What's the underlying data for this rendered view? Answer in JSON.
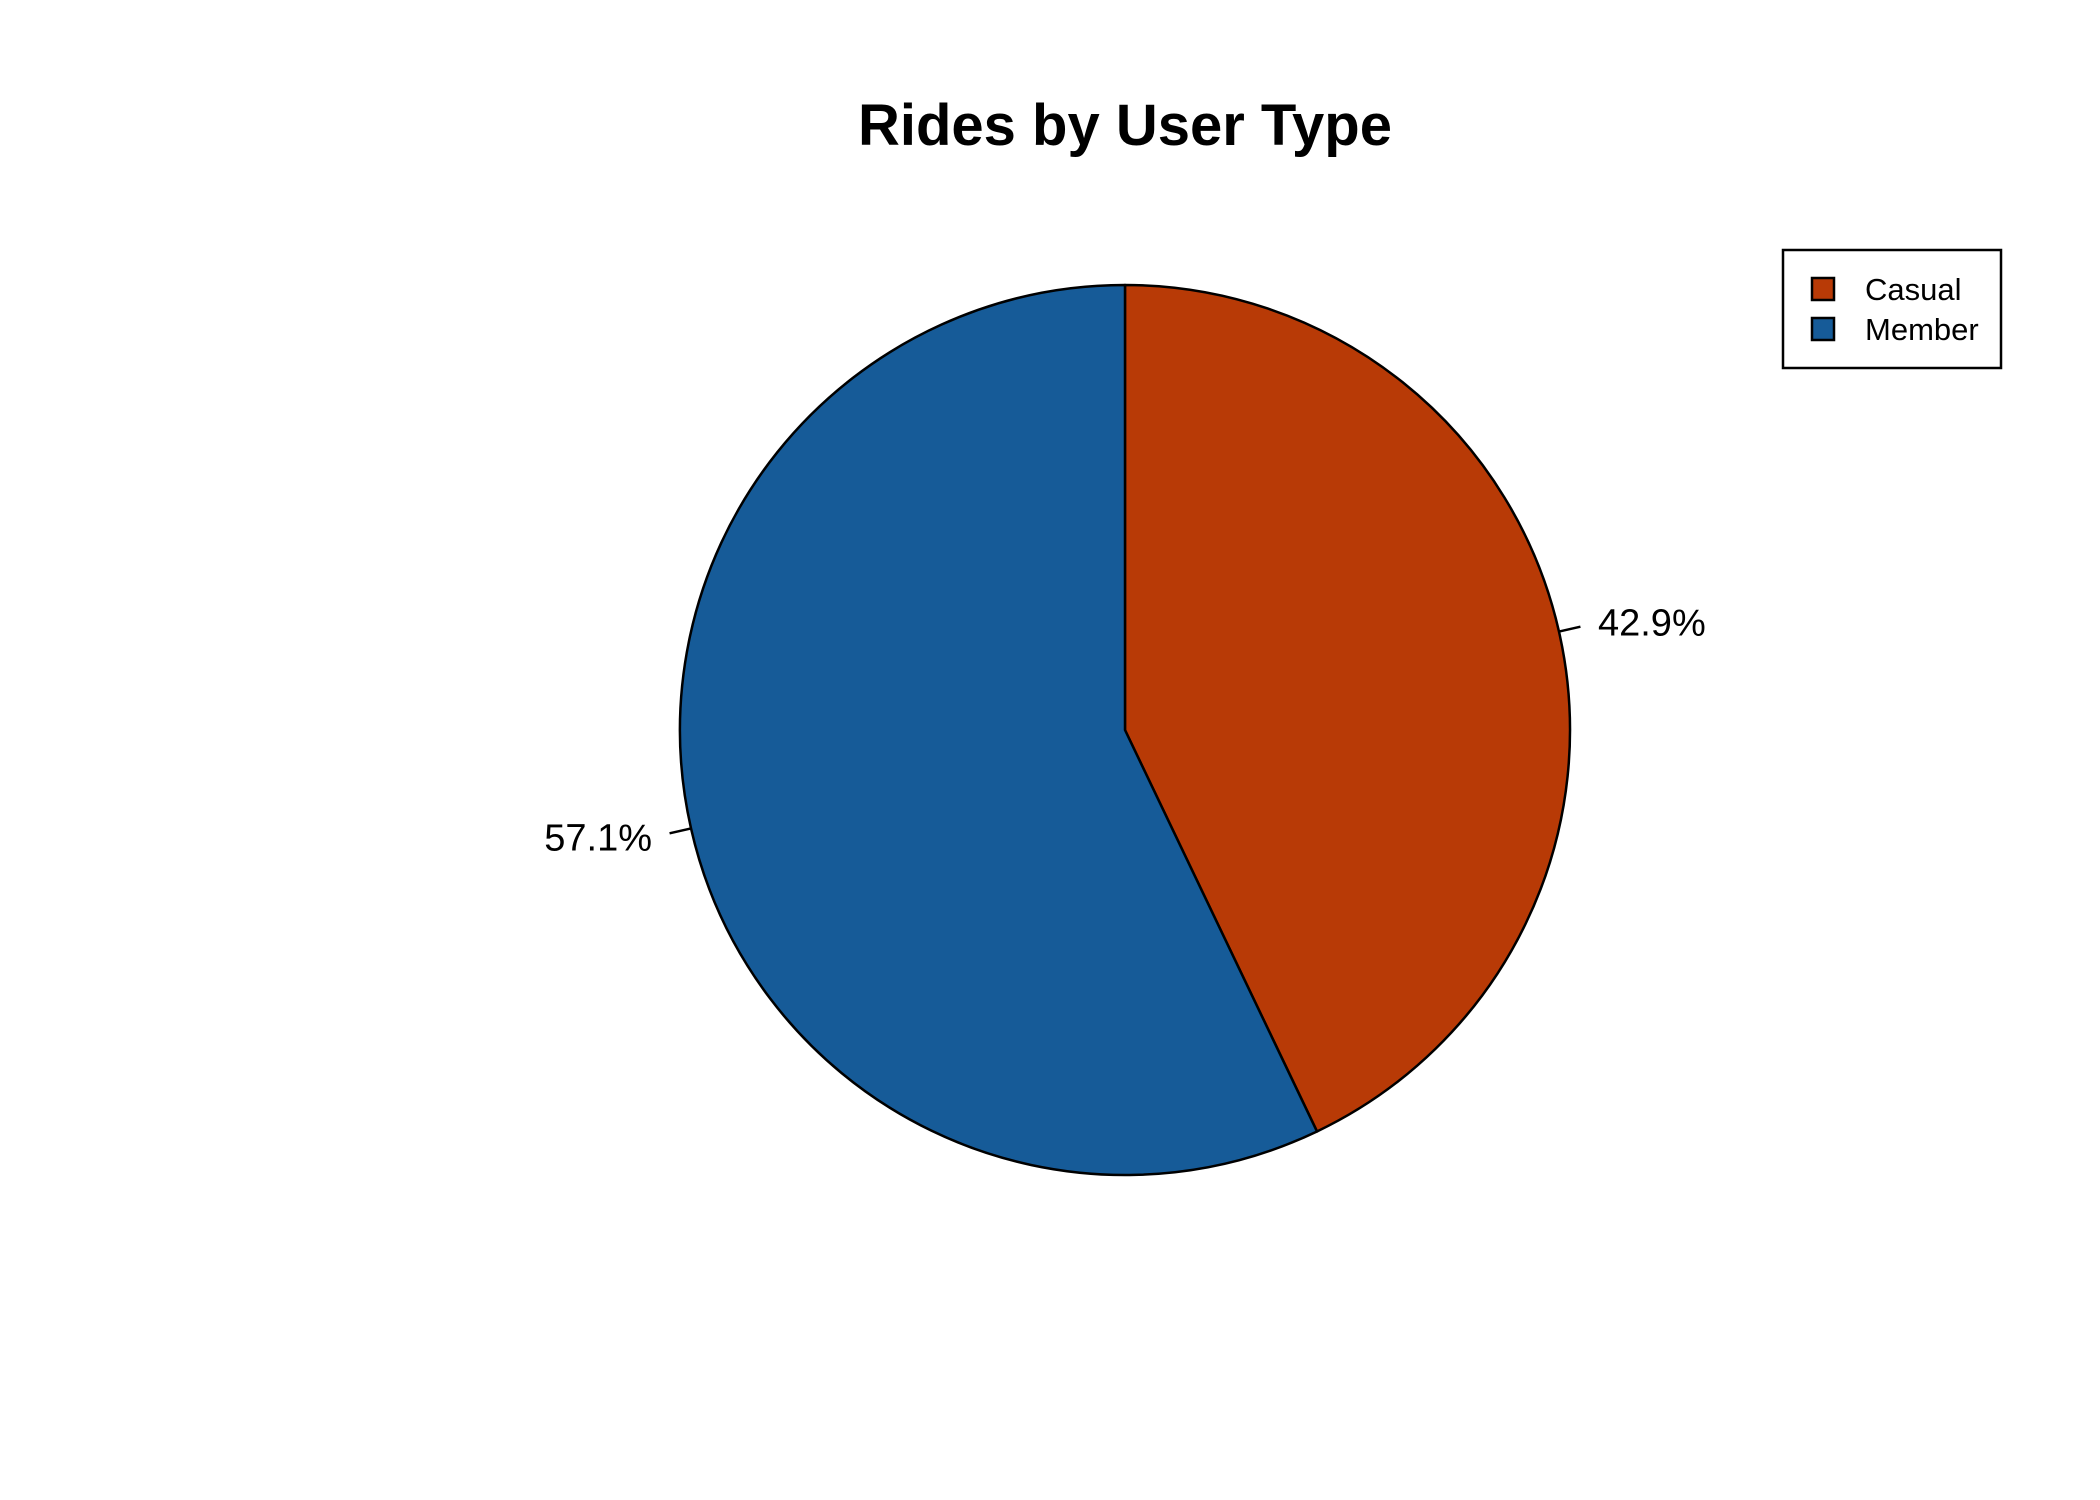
{
  "chart_data": {
    "type": "pie",
    "title": "Rides by User Type",
    "categories": [
      "Casual",
      "Member"
    ],
    "values": [
      42.9,
      57.1
    ],
    "labels": [
      "42.9%",
      "57.1%"
    ],
    "colors": [
      "#b83a06",
      "#165b98"
    ],
    "start_angle": "12 o'clock",
    "direction": "clockwise",
    "legend": {
      "position": "top-right",
      "entries": [
        "Casual",
        "Member"
      ]
    }
  }
}
